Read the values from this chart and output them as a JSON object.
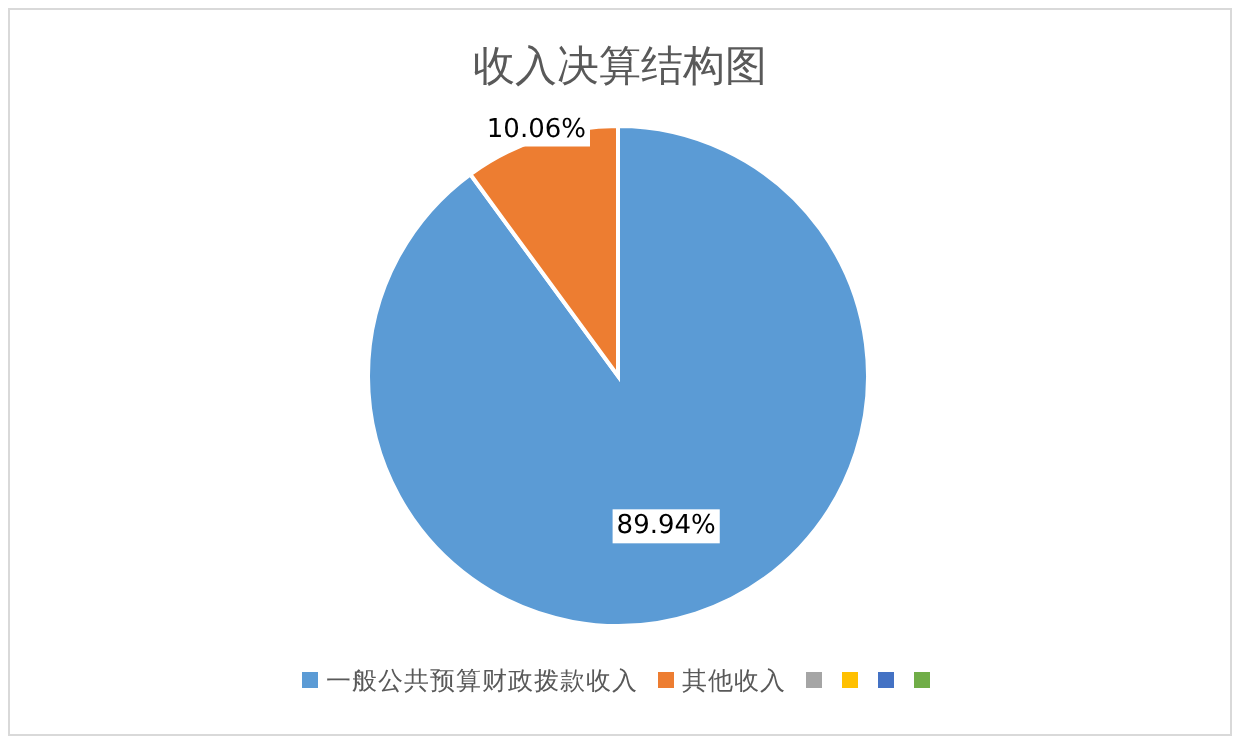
{
  "chart_data": {
    "type": "pie",
    "title": "收入决算结构图",
    "categories": [
      "一般公共预算财政拨款收入",
      "其他收入",
      null,
      null,
      null,
      null
    ],
    "values": [
      89.94,
      10.06,
      0,
      0,
      0,
      0
    ],
    "colors": [
      "#5b9bd5",
      "#ed7d31",
      "#a5a5a5",
      "#ffc000",
      "#4472c4",
      "#70ad47"
    ],
    "value_labels": [
      "89.94%",
      "10.06%",
      null,
      null,
      null,
      null
    ],
    "legend": "bottom"
  }
}
